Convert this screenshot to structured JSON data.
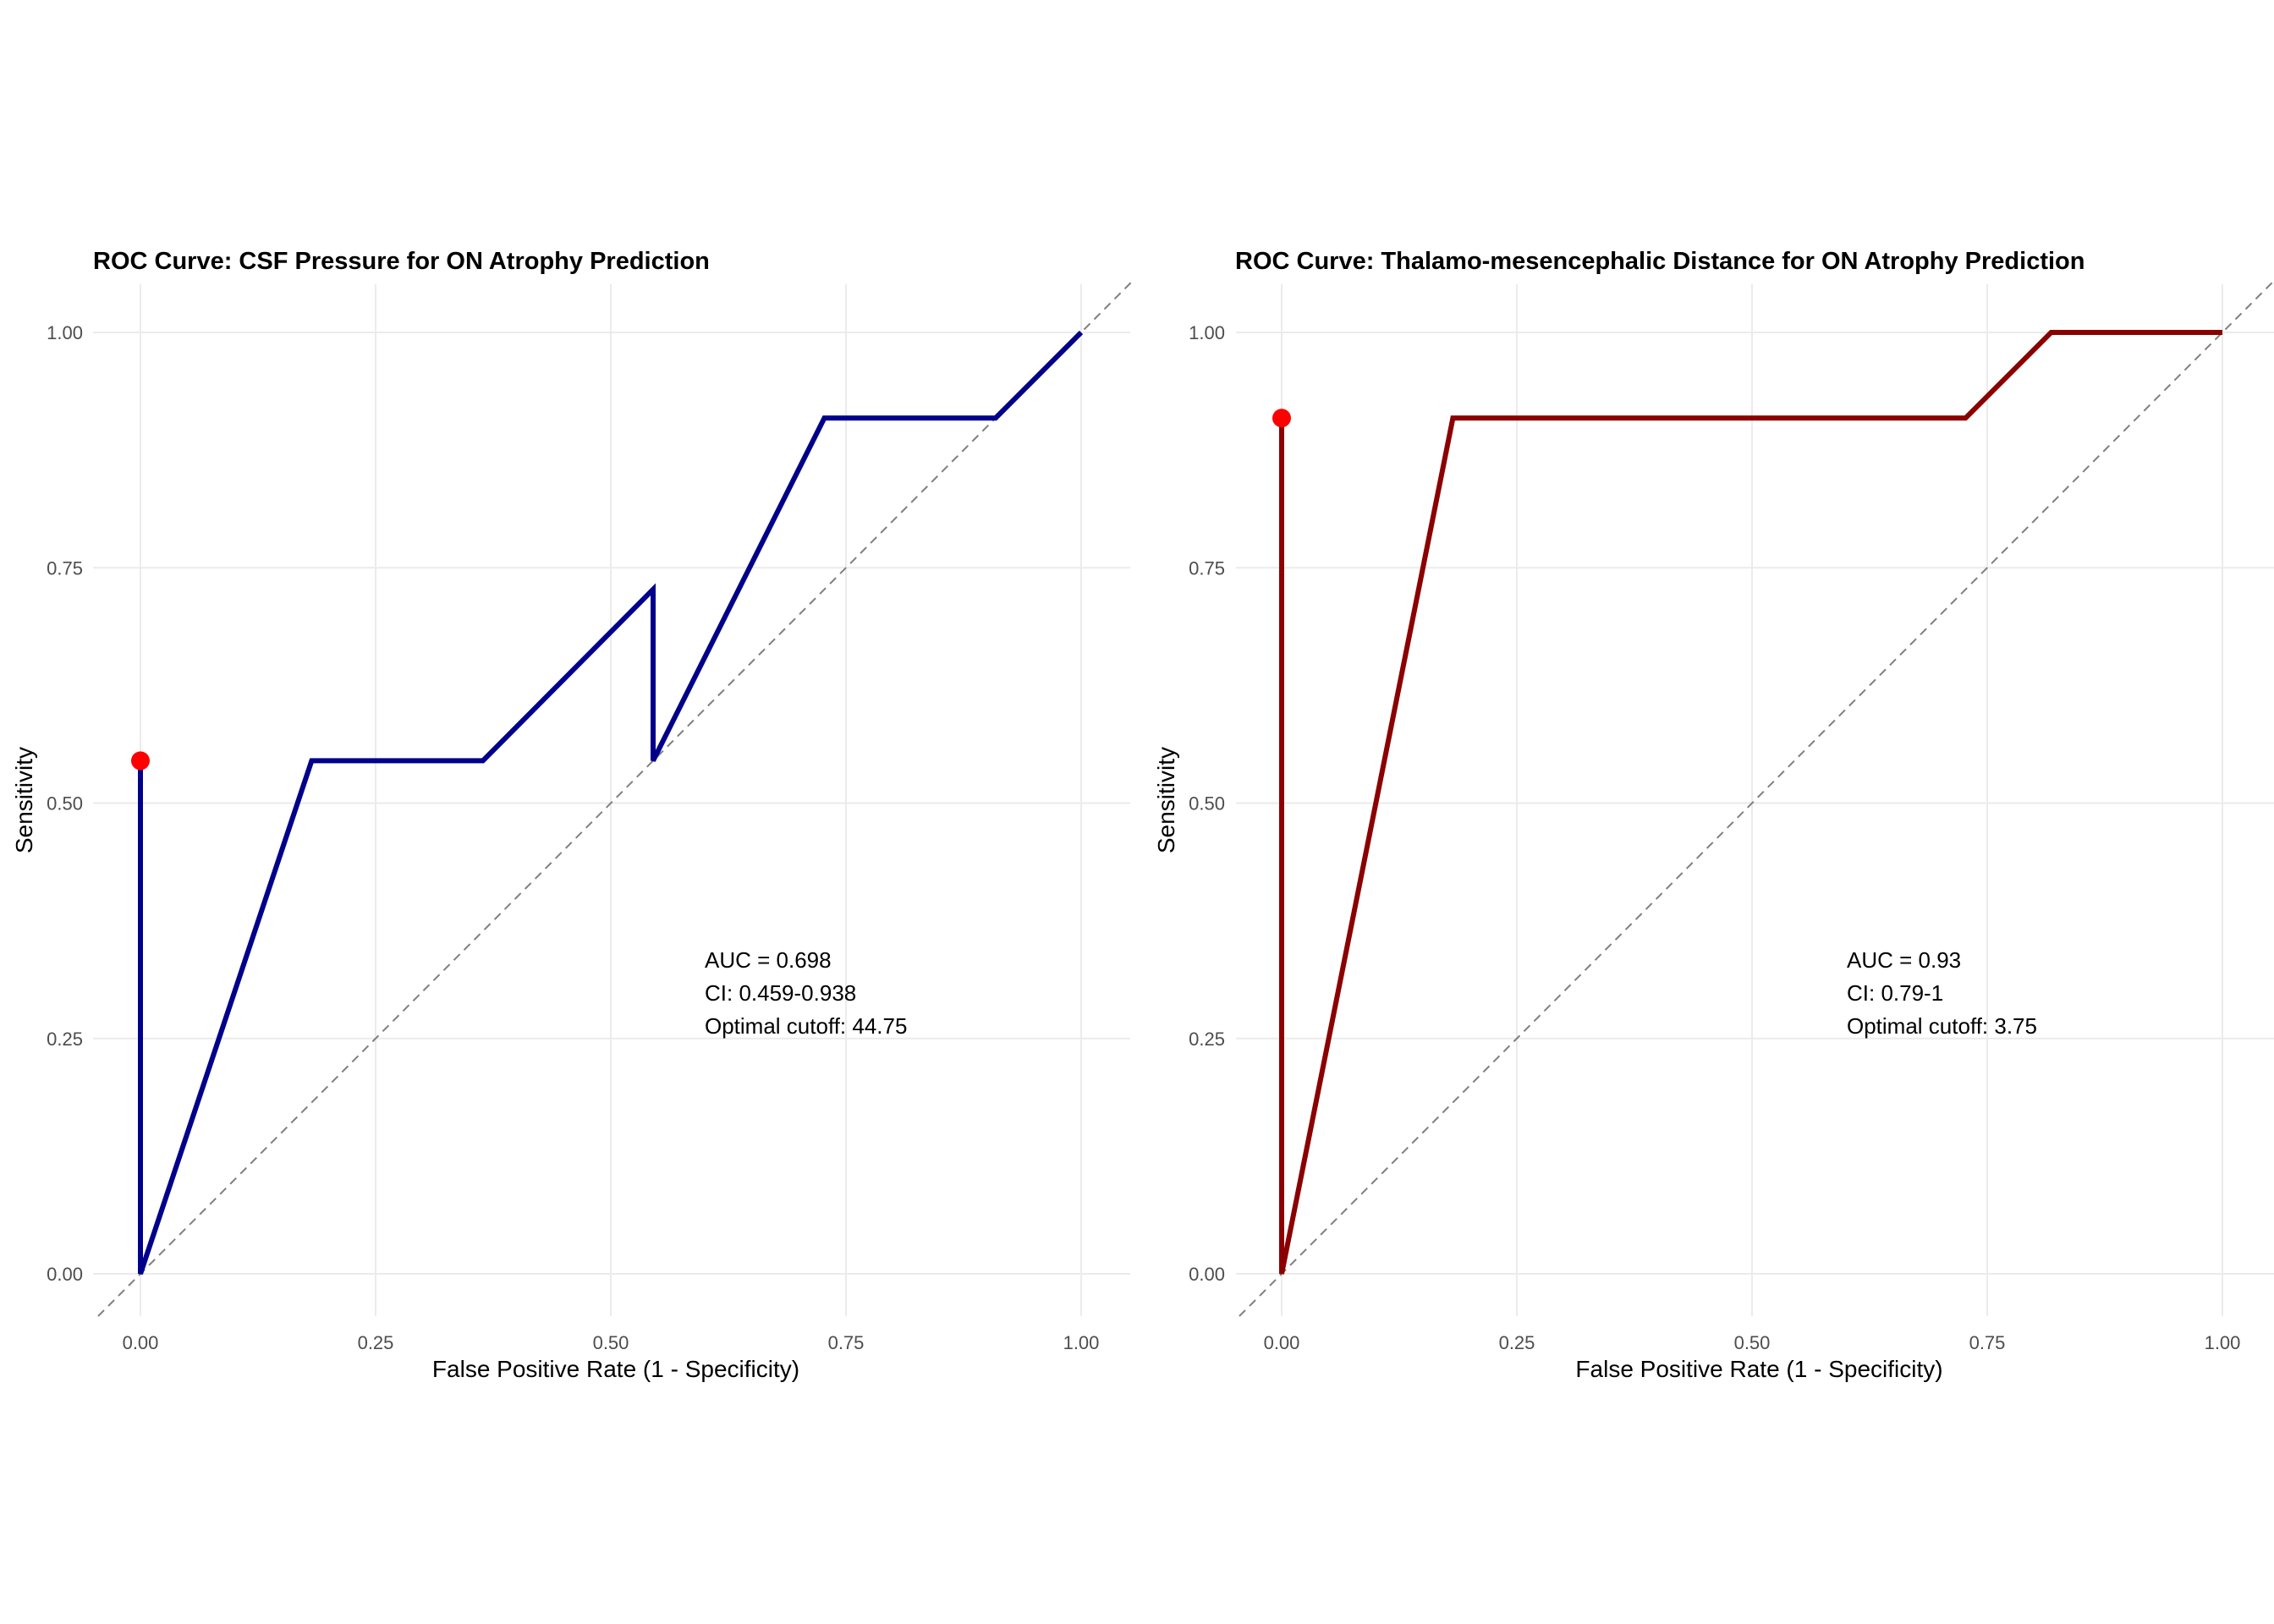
{
  "chart_data": [
    {
      "type": "line",
      "title": "ROC Curve: CSF Pressure for ON Atrophy Prediction",
      "xlabel": "False Positive Rate (1 - Specificity)",
      "ylabel": "Sensitivity",
      "xlim": [
        0,
        1
      ],
      "ylim": [
        0,
        1
      ],
      "xticks": [
        "0.00",
        "0.25",
        "0.50",
        "0.75",
        "1.00"
      ],
      "yticks": [
        "0.00",
        "0.25",
        "0.50",
        "0.75",
        "1.00"
      ],
      "grid": true,
      "reference_line": "diagonal dashed y = x",
      "series": [
        {
          "color": "#00008B",
          "x": [
            0.0,
            0.0,
            0.182,
            0.364,
            0.545,
            0.545,
            0.727,
            0.909,
            1.0
          ],
          "y": [
            0.545,
            0.0,
            0.545,
            0.545,
            0.727,
            0.545,
            0.909,
            0.909,
            1.0
          ]
        }
      ],
      "optimal_point": {
        "x": 0.0,
        "y": 0.545,
        "color": "#FF0000"
      },
      "annotations": [
        "AUC = 0.698",
        "CI: 0.459-0.938",
        "Optimal cutoff: 44.75"
      ]
    },
    {
      "type": "line",
      "title": "ROC Curve: Thalamo-mesencephalic Distance for ON Atrophy Prediction",
      "xlabel": "False Positive Rate (1 - Specificity)",
      "ylabel": "Sensitivity",
      "xlim": [
        0,
        1
      ],
      "ylim": [
        0,
        1
      ],
      "xticks": [
        "0.00",
        "0.25",
        "0.50",
        "0.75",
        "1.00"
      ],
      "yticks": [
        "0.00",
        "0.25",
        "0.50",
        "0.75",
        "1.00"
      ],
      "grid": true,
      "reference_line": "diagonal dashed y = x",
      "series": [
        {
          "color": "#8B0000",
          "x": [
            0.0,
            0.0,
            0.182,
            0.727,
            0.818,
            1.0
          ],
          "y": [
            0.909,
            0.0,
            0.909,
            0.909,
            1.0,
            1.0
          ]
        }
      ],
      "optimal_point": {
        "x": 0.0,
        "y": 0.909,
        "color": "#FF0000"
      },
      "annotations": [
        "AUC = 0.93",
        "CI: 0.79-1",
        "Optimal cutoff: 3.75"
      ]
    }
  ]
}
